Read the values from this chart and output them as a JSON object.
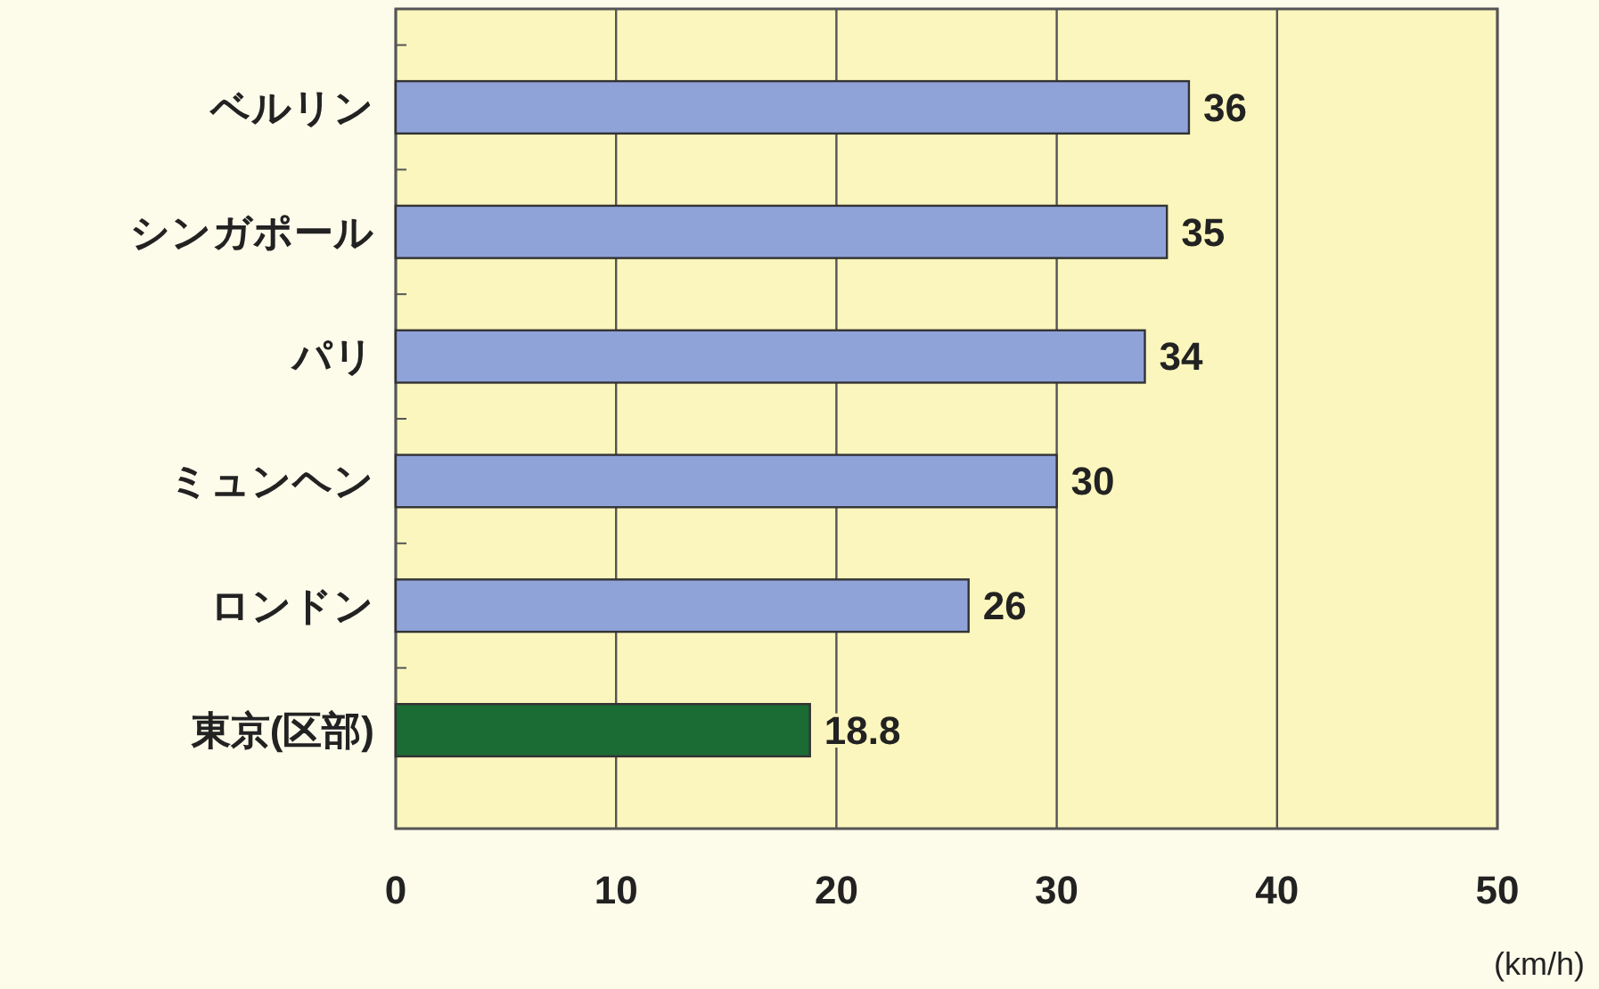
{
  "chart_data": {
    "type": "bar",
    "orientation": "horizontal",
    "categories": [
      "ベルリン",
      "シンガポール",
      "パリ",
      "ミュンヘン",
      "ロンドン",
      "東京(区部)"
    ],
    "values": [
      36,
      35,
      34,
      30,
      26,
      18.8
    ],
    "colors": [
      "#8fa3d9",
      "#8fa3d9",
      "#8fa3d9",
      "#8fa3d9",
      "#8fa3d9",
      "#1b6b35"
    ],
    "xlim": [
      0,
      50
    ],
    "xticks": [
      0,
      10,
      20,
      30,
      40,
      50
    ],
    "xlabel": "(km/h)",
    "grid": "x",
    "data_labels": true
  }
}
